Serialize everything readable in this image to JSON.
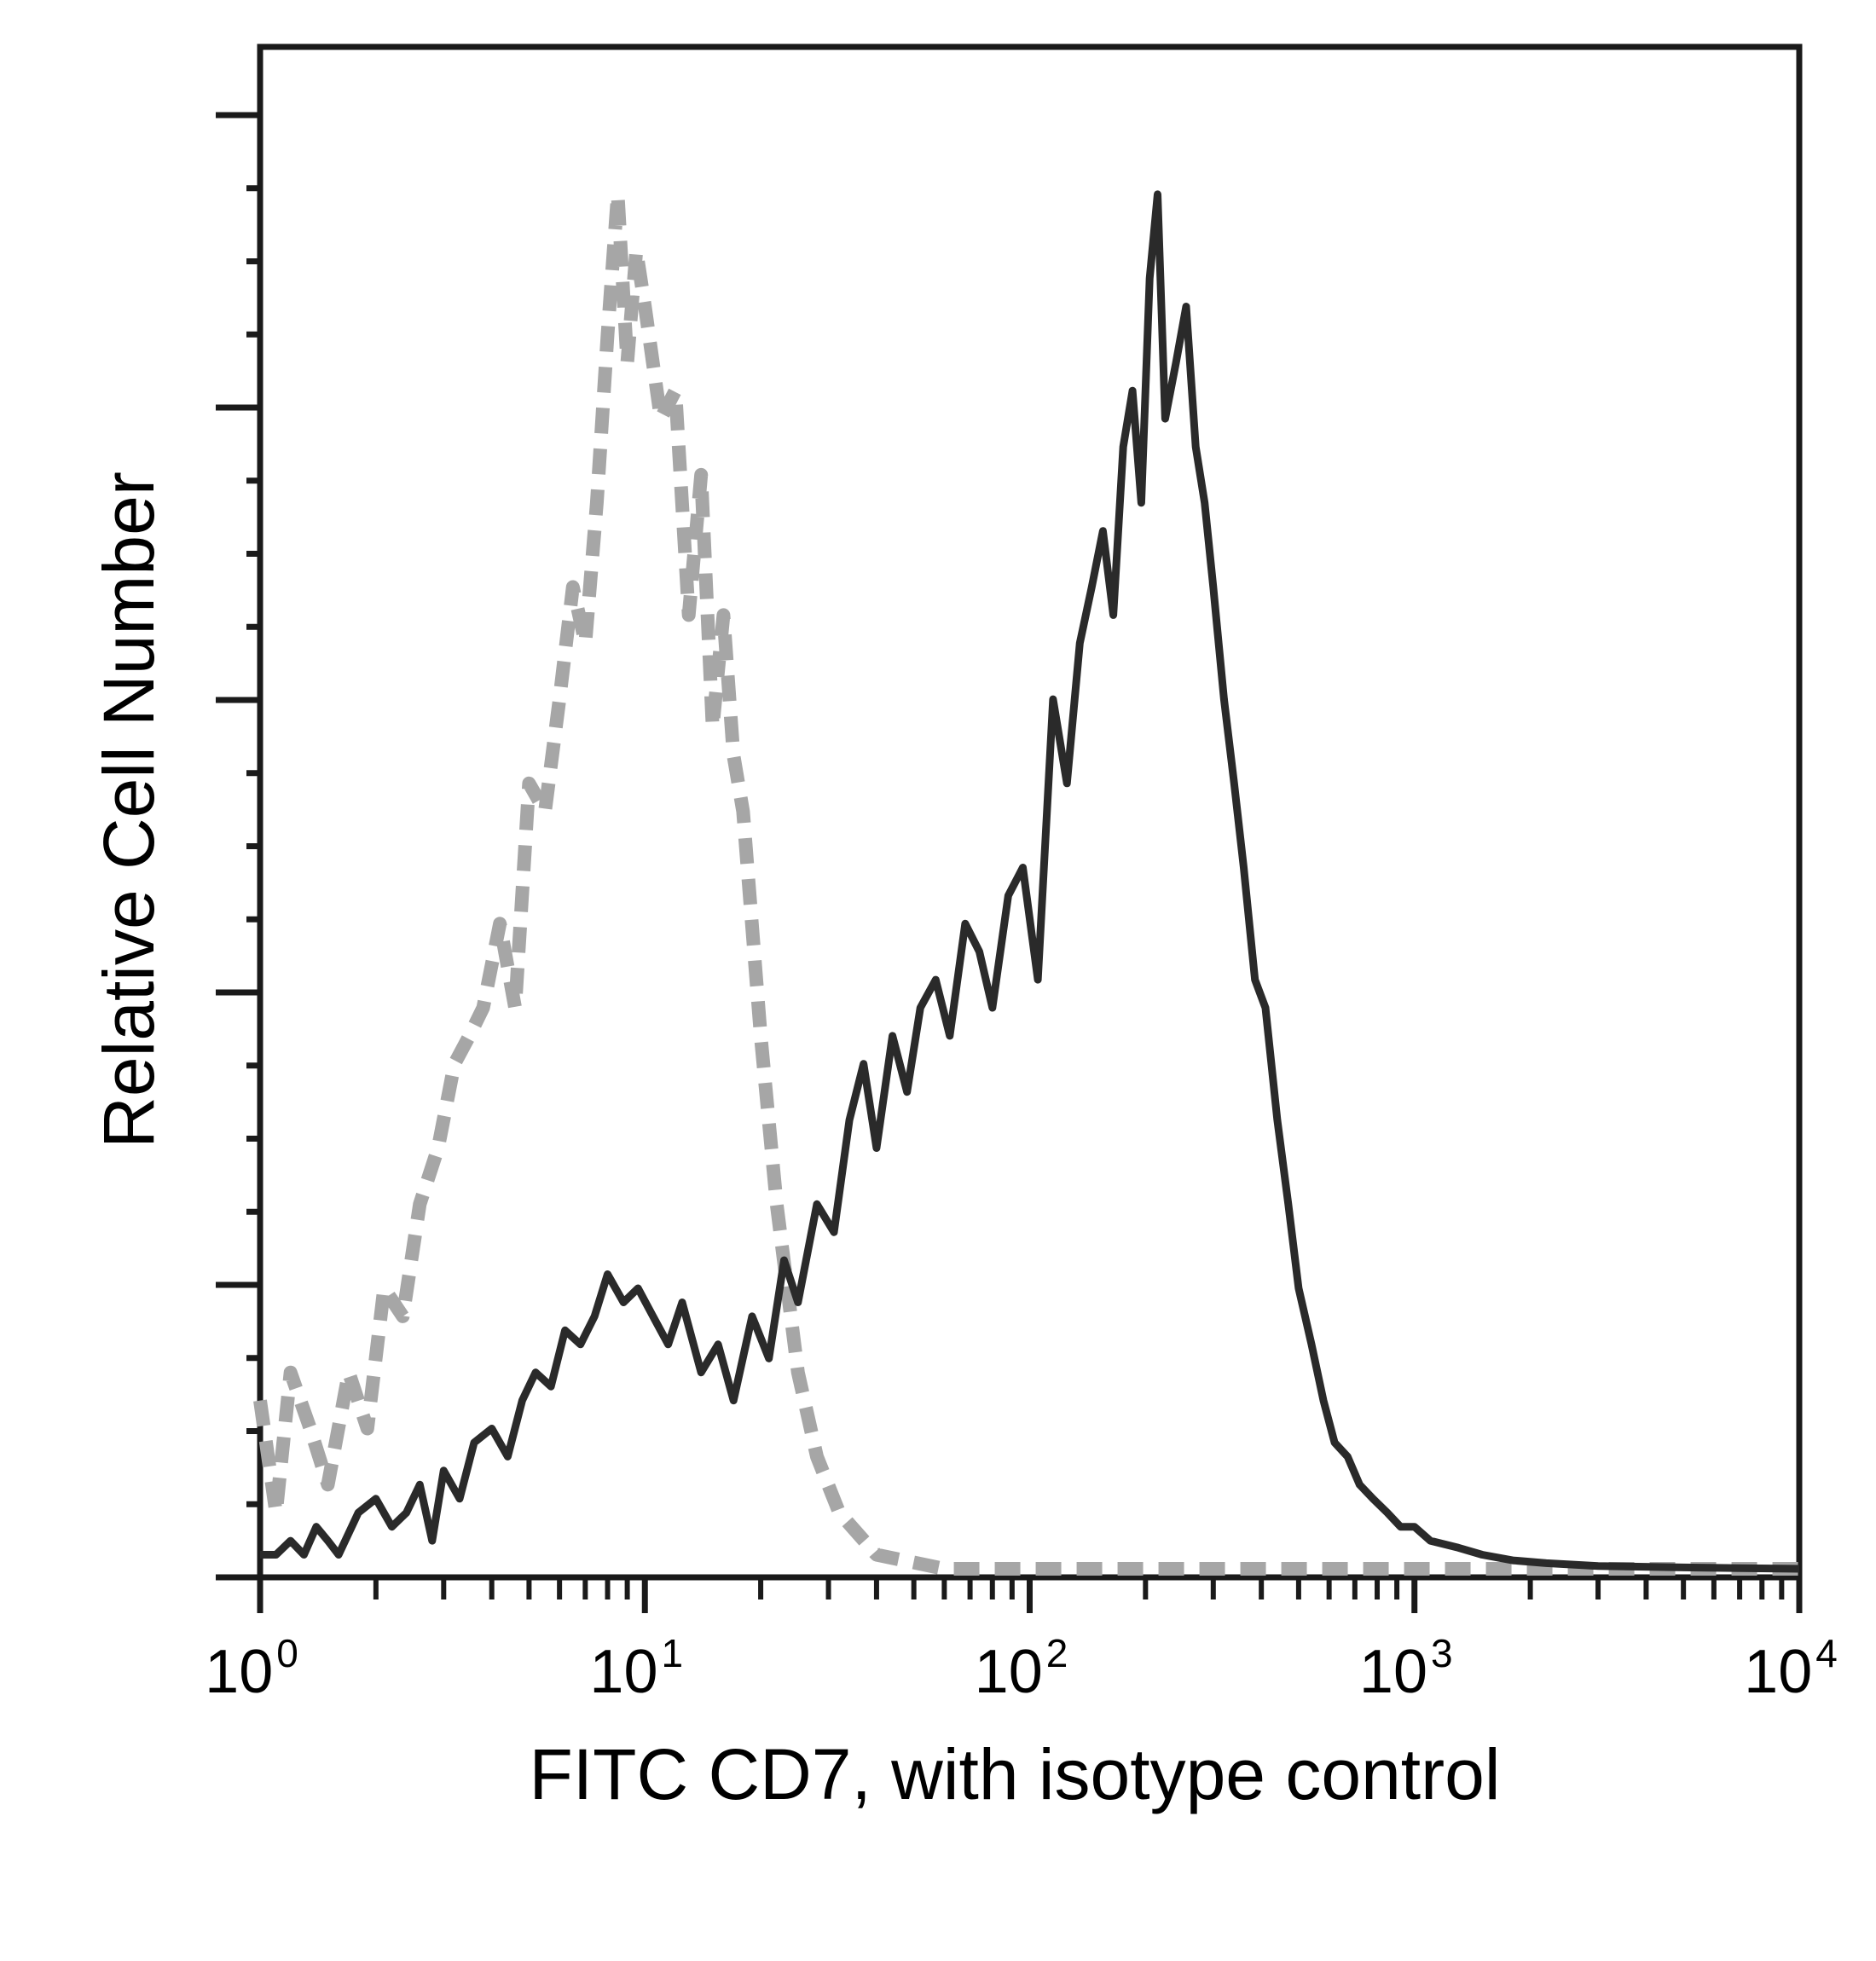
{
  "chart_data": {
    "type": "line",
    "xlabel": "FITC CD7, with isotype control",
    "ylabel": "Relative Cell Number",
    "x_scale": "log",
    "xlim": [
      1,
      10000
    ],
    "ylim": [
      0,
      100
    ],
    "x_ticks": [
      {
        "base": "10",
        "exp": "0"
      },
      {
        "base": "10",
        "exp": "1"
      },
      {
        "base": "10",
        "exp": "2"
      },
      {
        "base": "10",
        "exp": "3"
      },
      {
        "base": "10",
        "exp": "4"
      }
    ],
    "grid": false,
    "legend": "none",
    "series": [
      {
        "style": "dashed",
        "color": "#a6a6a6",
        "x": [
          1.0,
          1.1,
          1.2,
          1.35,
          1.5,
          1.7,
          1.9,
          2.1,
          2.35,
          2.6,
          2.9,
          3.2,
          3.5,
          3.8,
          4.2,
          4.6,
          5.0,
          5.5,
          6.0,
          6.5,
          7.0,
          7.5,
          8.0,
          8.5,
          9.0,
          9.5,
          10,
          11,
          12,
          13,
          14,
          15,
          16,
          17,
          18,
          20,
          22,
          25,
          28,
          32,
          40,
          60,
          100,
          200,
          500,
          1000,
          10000
        ],
        "y": [
          12,
          4,
          14,
          10,
          6,
          14,
          10,
          20,
          18,
          26,
          30,
          36,
          38,
          40,
          46,
          40,
          56,
          54,
          62,
          70,
          66,
          76,
          88,
          98,
          86,
          94,
          90,
          82,
          84,
          68,
          78,
          60,
          68,
          58,
          54,
          38,
          26,
          14,
          8,
          4,
          1,
          0,
          0,
          0,
          0,
          0,
          0
        ]
      },
      {
        "style": "solid",
        "color": "#2a2a2a",
        "x": [
          1.0,
          1.1,
          1.2,
          1.3,
          1.4,
          1.5,
          1.6,
          1.8,
          2.0,
          2.2,
          2.4,
          2.6,
          2.8,
          3.0,
          3.3,
          3.6,
          4.0,
          4.4,
          4.8,
          5.2,
          5.7,
          6.2,
          6.8,
          7.4,
          8.0,
          8.8,
          9.6,
          10.5,
          11.5,
          12.5,
          14,
          15.5,
          17,
          19,
          21,
          23,
          25,
          28,
          31,
          34,
          37,
          40,
          44,
          48,
          52,
          57,
          62,
          68,
          74,
          80,
          88,
          96,
          105,
          115,
          125,
          135,
          145,
          155,
          165,
          175,
          185,
          195,
          205,
          215,
          225,
          240,
          255,
          270,
          285,
          300,
          320,
          340,
          360,
          385,
          410,
          440,
          470,
          500,
          540,
          580,
          620,
          670,
          720,
          780,
          850,
          920,
          1000,
          1100,
          1300,
          1500,
          1800,
          2200,
          3000,
          5000,
          10000
        ],
        "y": [
          1,
          1,
          2,
          1,
          3,
          2,
          1,
          4,
          5,
          3,
          4,
          6,
          2,
          7,
          5,
          9,
          10,
          8,
          12,
          14,
          13,
          17,
          16,
          18,
          21,
          19,
          20,
          18,
          16,
          19,
          14,
          16,
          12,
          18,
          15,
          22,
          19,
          26,
          24,
          32,
          36,
          30,
          38,
          34,
          40,
          42,
          38,
          46,
          44,
          40,
          48,
          50,
          42,
          62,
          56,
          66,
          70,
          74,
          68,
          80,
          84,
          76,
          92,
          98,
          82,
          86,
          90,
          80,
          76,
          70,
          62,
          56,
          50,
          42,
          40,
          32,
          26,
          20,
          16,
          12,
          9,
          8,
          6,
          5,
          4,
          3,
          3,
          2,
          1.5,
          1,
          0.6,
          0.4,
          0.2,
          0.1,
          0
        ]
      }
    ]
  }
}
